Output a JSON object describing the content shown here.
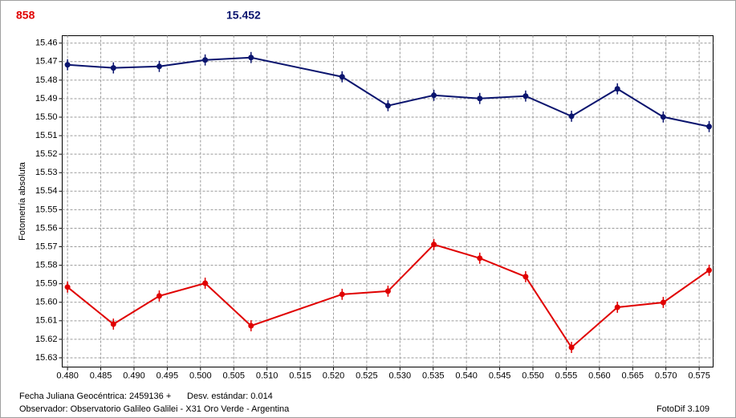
{
  "chart_data": {
    "type": "line",
    "header_left": "858",
    "header_right": "15.452",
    "y_label": "Fotometría absoluta",
    "footer_date": "Fecha Juliana Geocéntrica: 2459136 +",
    "footer_std": "Desv. estándar: 0.014",
    "footer_observer": "Observador: Observatorio Galileo Galilei - X31 Oro Verde - Argentina",
    "footer_software": "FotoDif 3.109",
    "inverted_y": true,
    "grid": true,
    "x": [
      0.48,
      0.4869,
      0.4938,
      0.5007,
      0.5076,
      0.5213,
      0.5282,
      0.5351,
      0.542,
      0.5489,
      0.5558,
      0.5627,
      0.5696,
      0.5765
    ],
    "series": [
      {
        "color": "#0a146e",
        "error": 0.003,
        "values": [
          15.4717,
          15.4734,
          15.4726,
          15.4691,
          15.4678,
          15.4782,
          15.4938,
          15.4882,
          15.4899,
          15.4886,
          15.4995,
          15.4847,
          15.4999,
          15.5051
        ]
      },
      {
        "color": "#e00000",
        "error": 0.003,
        "values": [
          15.5918,
          15.6118,
          15.5966,
          15.5897,
          15.6127,
          15.5957,
          15.594,
          15.5688,
          15.5762,
          15.5862,
          15.6244,
          15.6027,
          15.6001,
          15.5827
        ]
      }
    ],
    "xlim": [
      0.4792,
      0.5771
    ],
    "ylim": [
      15.456,
      15.635
    ],
    "xticks": [
      {
        "value": 0.48,
        "label": "0.480"
      },
      0.485,
      {
        "value": 0.49,
        "label": "0.490"
      },
      0.495,
      {
        "value": 0.5,
        "label": "0.500"
      },
      0.505,
      {
        "value": 0.51,
        "label": "0.510"
      },
      0.515,
      {
        "value": 0.52,
        "label": "0.520"
      },
      0.525,
      {
        "value": 0.53,
        "label": "0.530"
      },
      0.535,
      {
        "value": 0.54,
        "label": "0.540"
      },
      0.545,
      {
        "value": 0.55,
        "label": "0.550"
      },
      0.555,
      {
        "value": 0.56,
        "label": "0.560"
      },
      0.565,
      {
        "value": 0.57,
        "label": "0.570"
      },
      0.575
    ],
    "yticks": [
      15.46,
      15.47,
      15.48,
      15.49,
      {
        "value": 15.5,
        "label": "15.50"
      },
      15.51,
      15.52,
      15.53,
      15.54,
      15.55,
      15.56,
      15.57,
      15.58,
      15.59,
      {
        "value": 15.6,
        "label": "15.60"
      },
      15.61,
      15.62,
      15.63
    ]
  }
}
